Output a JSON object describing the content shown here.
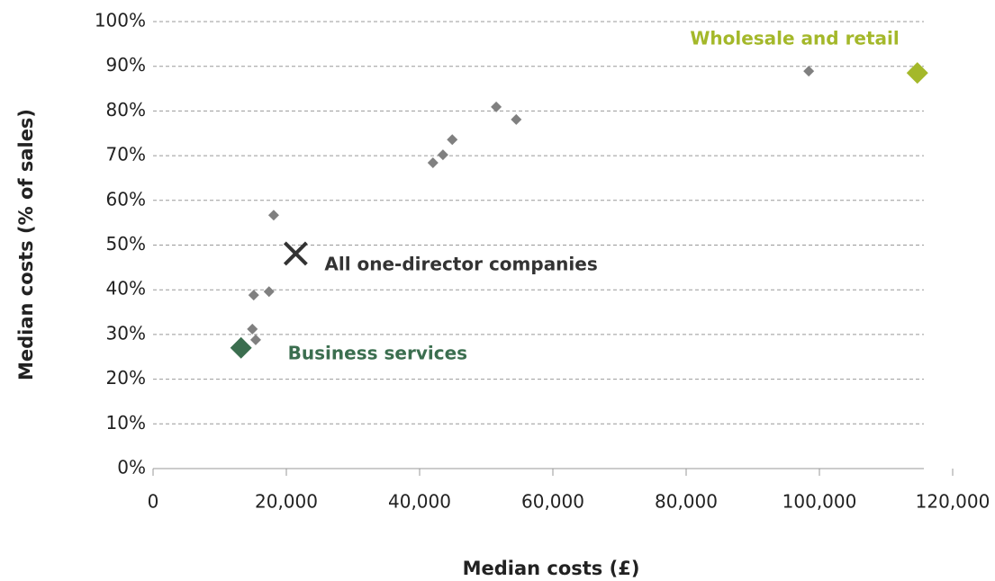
{
  "chart_data": {
    "type": "scatter",
    "xlabel": "Median costs (£)",
    "ylabel": "Median costs (% of sales)",
    "xlim": [
      0,
      120000
    ],
    "xticks": [
      0,
      {
        "value": 20000,
        "label": "20,000"
      },
      {
        "value": 40000,
        "label": "40,000"
      },
      {
        "value": 60000,
        "label": "60,000"
      },
      {
        "value": 80000,
        "label": "80,000"
      },
      {
        "value": 100000,
        "label": "100,000"
      },
      {
        "value": 120000,
        "label": "120,000"
      }
    ],
    "ylim": [
      0,
      100
    ],
    "yticks": [
      {
        "value": 0,
        "label": "0%"
      },
      {
        "value": 10,
        "label": "10%"
      },
      {
        "value": 20,
        "label": "20%"
      },
      {
        "value": 30,
        "label": "30%"
      },
      {
        "value": 40,
        "label": "40%"
      },
      {
        "value": 50,
        "label": "50%"
      },
      {
        "value": 60,
        "label": "60%"
      },
      {
        "value": 70,
        "label": "70%"
      },
      {
        "value": 80,
        "label": "80%"
      },
      {
        "value": 90,
        "label": "90%"
      },
      {
        "value": 100,
        "label": "100%"
      }
    ],
    "grid": true,
    "series": [
      {
        "color": "#808080",
        "marker": "diamond",
        "x": [
          98400,
          51500,
          54500,
          44900,
          43500,
          42000,
          18100,
          17400,
          15100,
          14900,
          15400
        ],
        "values": [
          88.9,
          80.9,
          78.1,
          73.6,
          70.2,
          68.4,
          56.7,
          39.6,
          38.8,
          31.2,
          28.8
        ]
      },
      {
        "name": "Wholesale and retail",
        "color": "#a4b82a",
        "marker": "diamond",
        "x": [
          114700
        ],
        "values": [
          88.5
        ]
      },
      {
        "name": "Business services",
        "color": "#3b6e4f",
        "marker": "diamond",
        "x": [
          13200
        ],
        "values": [
          27.0
        ]
      },
      {
        "name": "All one-director companies",
        "color": "#333333",
        "marker": "x",
        "x": [
          21400
        ],
        "values": [
          48.1
        ]
      }
    ]
  }
}
